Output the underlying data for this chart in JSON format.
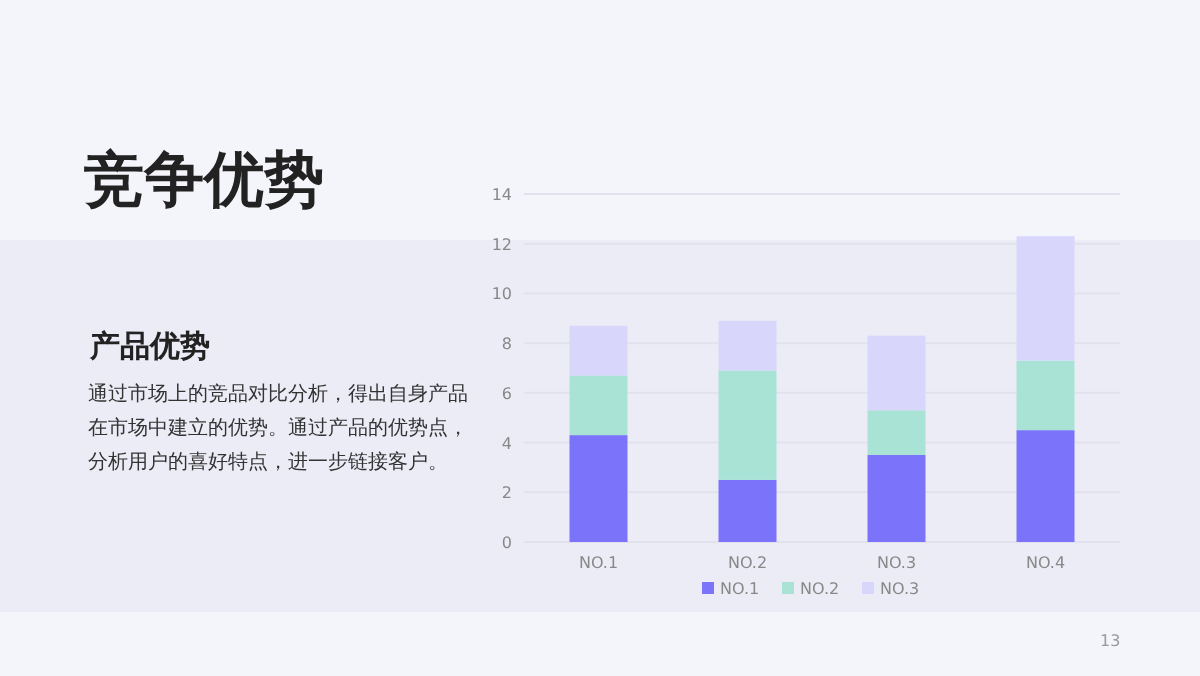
{
  "chart_data": {
    "type": "bar",
    "title": "竞争优势",
    "subtitle": "产品优势",
    "annotations": [
      "通过市场上的竞品对比分析，得出自身产品在市场中建立的优势。通过产品的优势点，分析用户的喜好特点，进一步链接客户。",
      "13"
    ],
    "categories": [
      "NO.1",
      "NO.2",
      "NO.3",
      "NO.4"
    ],
    "series": [
      {
        "name": "NO.1",
        "color": "#7b74fb",
        "values": [
          4.3,
          2.5,
          3.5,
          4.5
        ]
      },
      {
        "name": "NO.2",
        "color": "#a8e3d6",
        "values": [
          2.4,
          4.4,
          1.8,
          2.8
        ]
      },
      {
        "name": "NO.3",
        "color": "#d9d6fb",
        "values": [
          2.0,
          2.0,
          3.0,
          5.0
        ]
      }
    ],
    "stacked": true,
    "ylim": [
      0,
      14
    ],
    "yticks": [
      0,
      2,
      4,
      6,
      8,
      10,
      12,
      14
    ],
    "grid": "y",
    "legend": "bottom"
  }
}
